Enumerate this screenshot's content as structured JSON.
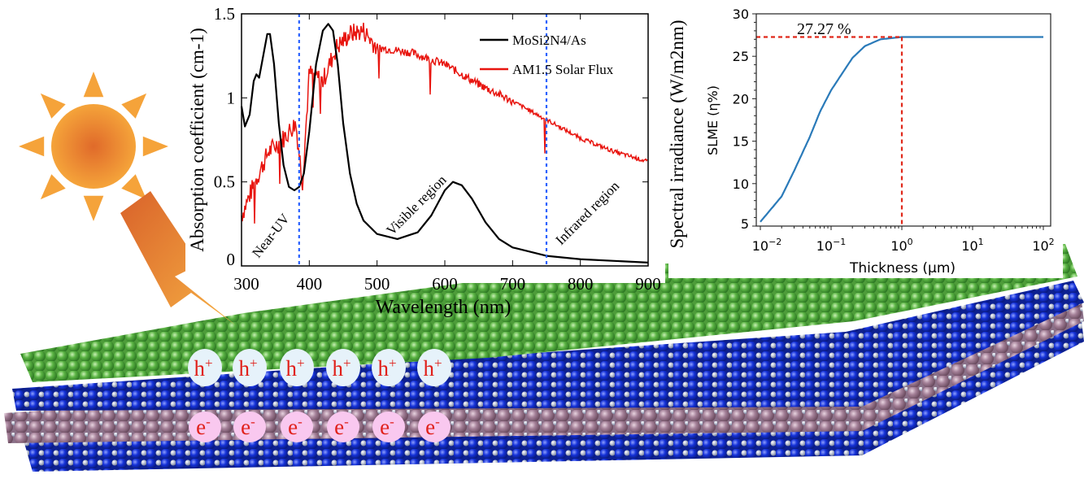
{
  "colors": {
    "absorption": "#000000",
    "solar_flux": "#e8150f",
    "region_divider": "#2a62ff",
    "slme_curve": "#2a7ab9",
    "slme_marker": "#e0281a",
    "sun": "#e8782a",
    "green_layer": "#5cb545",
    "blue_layer": "#1431d8",
    "pink_layer": "#a58199",
    "grey_atom": "#b0b8cc"
  },
  "icons": [
    "sun-icon",
    "lightning-bolt-icon"
  ],
  "chart_data": [
    {
      "type": "line",
      "xlabel": "Wavelength (nm)",
      "ylabel": "Absorption coefficient (cm-1)",
      "ylabel_right": "Spectral irradiance (W/m2nm)",
      "xlim": [
        300,
        900
      ],
      "ylim": [
        0,
        1.5
      ],
      "xticks": [
        "300",
        "400",
        "500",
        "600",
        "700",
        "800",
        "900"
      ],
      "yticks": [
        "0",
        "0.5",
        "1",
        "1.5"
      ],
      "grid": false,
      "legend_position": "top-right",
      "legend": [
        "MoSi2N4/As",
        "AM1.5 Solar Flux"
      ],
      "region_dividers": [
        385,
        750
      ],
      "annotations": [
        "Near-UV",
        "Visible region",
        "Infrared region"
      ],
      "series": [
        {
          "name": "MoSi2N4/As",
          "x": [
            300,
            305,
            312,
            318,
            322,
            326,
            332,
            338,
            342,
            348,
            355,
            362,
            370,
            378,
            385,
            392,
            400,
            410,
            420,
            428,
            435,
            442,
            450,
            460,
            470,
            480,
            500,
            530,
            560,
            580,
            600,
            612,
            625,
            640,
            660,
            680,
            700,
            750,
            800,
            900
          ],
          "y": [
            0.95,
            0.83,
            0.9,
            1.1,
            1.14,
            1.12,
            1.25,
            1.38,
            1.38,
            1.2,
            0.85,
            0.6,
            0.47,
            0.45,
            0.47,
            0.55,
            0.8,
            1.2,
            1.4,
            1.44,
            1.4,
            1.2,
            0.85,
            0.55,
            0.37,
            0.27,
            0.19,
            0.16,
            0.2,
            0.3,
            0.45,
            0.5,
            0.48,
            0.4,
            0.26,
            0.16,
            0.11,
            0.06,
            0.04,
            0.02
          ]
        },
        {
          "name": "AM1.5 Solar Flux",
          "x": [
            300,
            320,
            340,
            360,
            380,
            390,
            400,
            420,
            440,
            460,
            480,
            500,
            550,
            600,
            650,
            700,
            750,
            800,
            850,
            900
          ],
          "y": [
            0.3,
            0.5,
            0.68,
            0.75,
            0.85,
            0.5,
            1.15,
            1.1,
            1.3,
            1.38,
            1.4,
            1.3,
            1.27,
            1.2,
            1.08,
            0.98,
            0.87,
            0.76,
            0.68,
            0.62
          ]
        }
      ]
    },
    {
      "type": "line",
      "xlabel": "Thickness (μm)",
      "ylabel": "SLME (η%)",
      "xscale": "log",
      "xlim": [
        0.01,
        100
      ],
      "ylim": [
        5,
        30
      ],
      "xticks": [
        "10−2",
        "10−1",
        "100",
        "101",
        "102"
      ],
      "yticks": [
        "5",
        "10",
        "15",
        "20",
        "25",
        "30"
      ],
      "grid": false,
      "annotation": "27.27 %",
      "marker_point": {
        "x": 1,
        "y": 27.27
      },
      "series": [
        {
          "x": [
            0.01,
            0.02,
            0.03,
            0.05,
            0.07,
            0.1,
            0.2,
            0.3,
            0.5,
            1,
            10,
            100
          ],
          "y": [
            5.5,
            8.5,
            11.5,
            15.5,
            18.5,
            21,
            24.8,
            26.2,
            27,
            27.27,
            27.27,
            27.27
          ]
        }
      ]
    }
  ],
  "labels": {
    "hole": "h",
    "hole_sup": "+",
    "electron": "e",
    "electron_sup": "-",
    "count": 6
  }
}
